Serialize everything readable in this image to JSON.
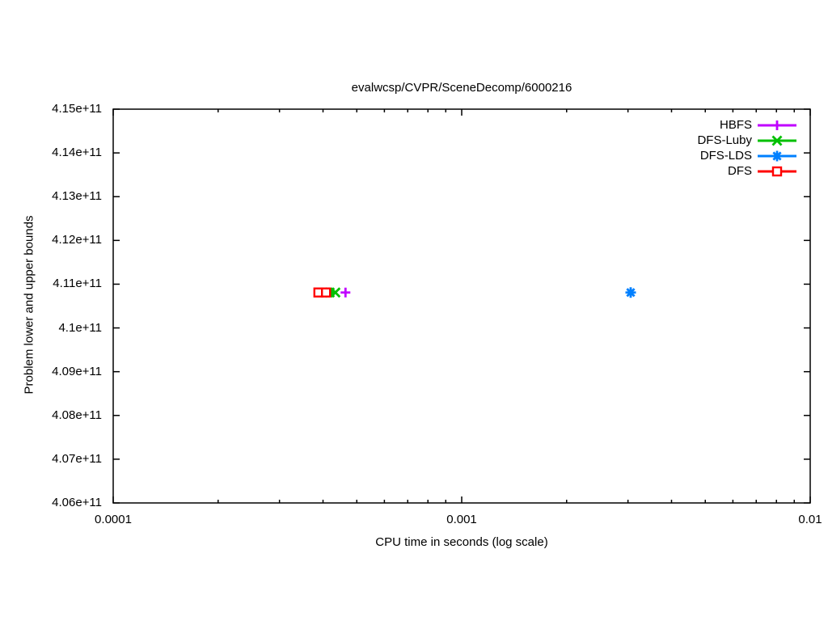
{
  "chart_data": {
    "type": "scatter",
    "title": "evalwcsp/CVPR/SceneDecomp/6000216",
    "xlabel": "CPU time in seconds (log scale)",
    "ylabel": "Problem lower and upper bounds",
    "x_scale": "log",
    "grid": false,
    "legend_position": "inside-top-right",
    "x_range": [
      0.0001,
      0.01
    ],
    "y_range": [
      406000000000,
      415000000000
    ],
    "x_tick_labels": [
      "0.0001",
      "0.001",
      "0.01"
    ],
    "x_tick_values": [
      0.0001,
      0.001,
      0.01
    ],
    "y_tick_labels": [
      "4.06e+11",
      "4.07e+11",
      "4.08e+11",
      "4.09e+11",
      "4.1e+11",
      "4.11e+11",
      "4.12e+11",
      "4.13e+11",
      "4.14e+11",
      "4.15e+11"
    ],
    "series": [
      {
        "name": "HBFS",
        "color": "#c000ff",
        "marker": "plus",
        "x": [
          0.000464
        ],
        "y": [
          410810000000
        ]
      },
      {
        "name": "DFS-Luby",
        "color": "#00c000",
        "marker": "cross",
        "x": [
          0.000418,
          0.000434
        ],
        "y": [
          410810000000,
          410810000000
        ]
      },
      {
        "name": "DFS-LDS",
        "color": "#0080ff",
        "marker": "star",
        "x": [
          0.003054
        ],
        "y": [
          410810000000
        ]
      },
      {
        "name": "DFS",
        "color": "#ff0000",
        "marker": "square",
        "x": [
          0.000388,
          0.000408
        ],
        "y": [
          410810000000,
          410810000000
        ]
      }
    ]
  }
}
